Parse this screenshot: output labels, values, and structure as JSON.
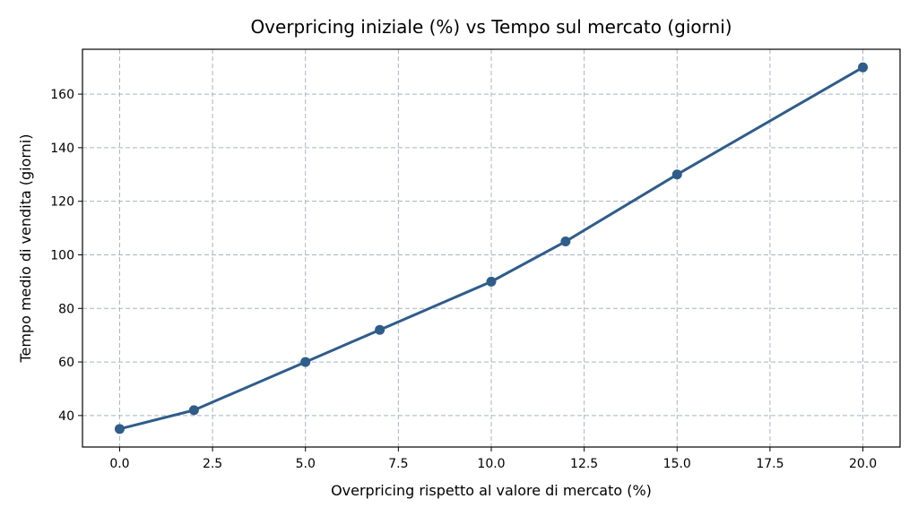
{
  "chart_data": {
    "type": "line",
    "title": "Overpricing iniziale (%) vs Tempo sul mercato (giorni)",
    "xlabel": "Overpricing rispetto al valore di mercato (%)",
    "ylabel": "Tempo medio di vendita (giorni)",
    "xlim": [
      -1,
      21
    ],
    "ylim": [
      28.25,
      176.75
    ],
    "x_ticks": [
      0,
      2.5,
      5,
      7.5,
      10,
      12.5,
      15,
      17.5,
      20
    ],
    "x_tick_labels": [
      "0.0",
      "2.5",
      "5.0",
      "7.5",
      "10.0",
      "12.5",
      "15.0",
      "17.5",
      "20.0"
    ],
    "y_ticks": [
      40,
      60,
      80,
      100,
      120,
      140,
      160
    ],
    "y_tick_labels": [
      "40",
      "60",
      "80",
      "100",
      "120",
      "140",
      "160"
    ],
    "grid": true,
    "series": [
      {
        "color": "#2f5d8a",
        "marker": "circle",
        "x": [
          0,
          2,
          5,
          7,
          10,
          12,
          15,
          20
        ],
        "y": [
          35,
          42,
          60,
          72,
          90,
          105,
          130,
          170
        ]
      }
    ]
  }
}
